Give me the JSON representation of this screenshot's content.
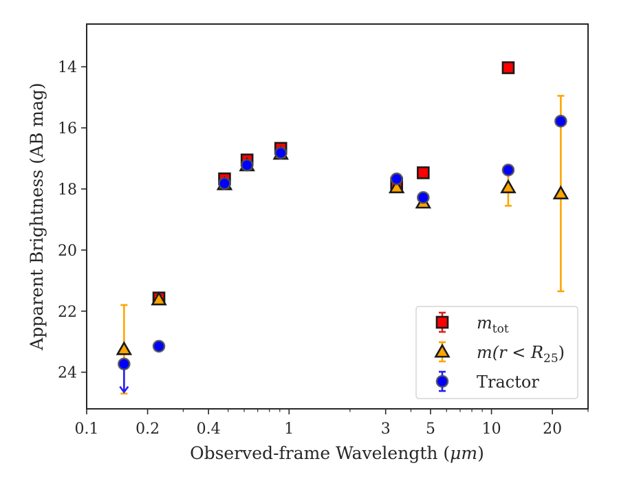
{
  "chart_data": {
    "type": "scatter",
    "xlabel": "Observed-frame Wavelength (",
    "xlabel_unit": "μm",
    "xlabel_close": ")",
    "ylabel": "Apparent Brightness (AB mag)",
    "xscale": "log",
    "xlim": [
      0.1,
      30
    ],
    "ylim": [
      25.2,
      12.6
    ],
    "y_inverted": true,
    "grid": false,
    "legend_position": "lower-right",
    "x_ticks": [
      {
        "v": 0.1,
        "label": "0.1"
      },
      {
        "v": 0.2,
        "label": "0.2"
      },
      {
        "v": 0.4,
        "label": "0.4"
      },
      {
        "v": 1,
        "label": "1"
      },
      {
        "v": 3,
        "label": "3"
      },
      {
        "v": 5,
        "label": "5"
      },
      {
        "v": 10,
        "label": "10"
      },
      {
        "v": 20,
        "label": "20"
      }
    ],
    "y_ticks": [
      {
        "v": 14,
        "label": "14"
      },
      {
        "v": 16,
        "label": "16"
      },
      {
        "v": 18,
        "label": "18"
      },
      {
        "v": 20,
        "label": "20"
      },
      {
        "v": 22,
        "label": "22"
      },
      {
        "v": 24,
        "label": "24"
      }
    ],
    "series": [
      {
        "key": "mtot",
        "legend_main": "m",
        "legend_sub": "tot",
        "marker": "square",
        "fill": "#ff0000",
        "edge": "#1a1a1a",
        "errcolor": "#e02020",
        "points": [
          {
            "x": 0.2275,
            "y": 21.57,
            "err": 0.12
          },
          {
            "x": 0.48,
            "y": 17.67,
            "err": 0.07
          },
          {
            "x": 0.62,
            "y": 17.05,
            "err": 0.07
          },
          {
            "x": 0.91,
            "y": 16.67,
            "err": 0.07
          },
          {
            "x": 3.4,
            "y": 17.82,
            "err": 0.06
          },
          {
            "x": 4.6,
            "y": 17.47,
            "err": 0.06
          },
          {
            "x": 12.1,
            "y": 14.03,
            "err": 0.05
          }
        ]
      },
      {
        "key": "mr25",
        "legend_main": "m(r < R",
        "legend_sub": "25",
        "legend_close": ")",
        "marker": "triangle",
        "fill": "#ffa500",
        "edge": "#1a1a1a",
        "errcolor": "#ffa500",
        "points": [
          {
            "x": 0.153,
            "y": 23.25,
            "lo": 21.8,
            "hi": 24.7
          },
          {
            "x": 0.2275,
            "y": 21.62,
            "err": 0.08
          },
          {
            "x": 0.48,
            "y": 17.85,
            "err": 0.05
          },
          {
            "x": 0.62,
            "y": 17.23,
            "err": 0.05
          },
          {
            "x": 0.91,
            "y": 16.85,
            "err": 0.05
          },
          {
            "x": 3.4,
            "y": 17.95,
            "err": 0.06
          },
          {
            "x": 4.6,
            "y": 18.45,
            "err": 0.08
          },
          {
            "x": 12.1,
            "y": 17.95,
            "lo": 17.4,
            "hi": 18.55
          },
          {
            "x": 22.0,
            "y": 18.15,
            "lo": 14.95,
            "hi": 21.35
          }
        ]
      },
      {
        "key": "tractor",
        "legend_main": "Tractor",
        "marker": "circle",
        "fill": "#0000ff",
        "edge": "#505050",
        "errcolor": "#2020ff",
        "points": [
          {
            "x": 0.153,
            "y": 23.73,
            "upper_limit_arrow": true,
            "arrow_to": 24.65
          },
          {
            "x": 0.2275,
            "y": 23.15,
            "err": 0.05
          },
          {
            "x": 0.48,
            "y": 17.82,
            "err": 0.05
          },
          {
            "x": 0.62,
            "y": 17.22,
            "err": 0.05
          },
          {
            "x": 0.91,
            "y": 16.82,
            "err": 0.05
          },
          {
            "x": 3.4,
            "y": 17.67,
            "err": 0.05
          },
          {
            "x": 4.6,
            "y": 18.28,
            "err": 0.05
          },
          {
            "x": 12.1,
            "y": 17.38,
            "err": 0.1
          },
          {
            "x": 22.0,
            "y": 15.78,
            "err": 0.1
          }
        ]
      }
    ]
  }
}
